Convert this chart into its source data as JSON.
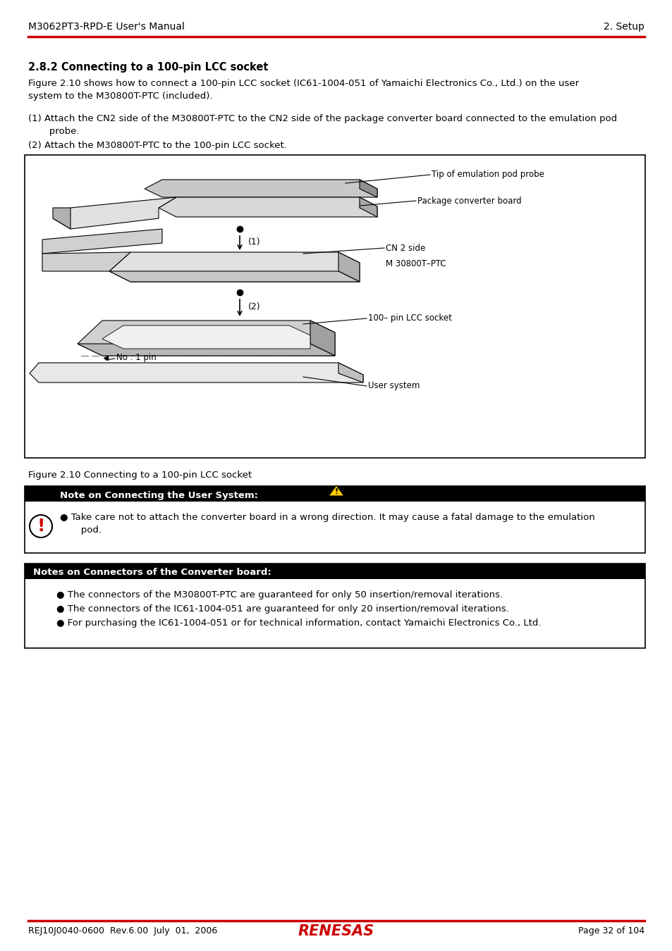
{
  "header_left": "M3062PT3-RPD-E User's Manual",
  "header_right": "2. Setup",
  "footer_left": "REJ10J0040-0600  Rev.6.00  July  01,  2006",
  "footer_right": "Page 32 of 104",
  "footer_logo": "RENESAS",
  "section_title": "2.8.2 Connecting to a 100-pin LCC socket",
  "para1_line1": "Figure 2.10 shows how to connect a 100-pin LCC socket (IC61-1004-051 of Yamaichi Electronics Co., Ltd.) on the user",
  "para1_line2": "system to the M30800T-PTC (included).",
  "step1_line1": "(1) Attach the CN2 side of the M30800T-PTC to the CN2 side of the package converter board connected to the emulation pod",
  "step1_line2": "       probe.",
  "step2": "(2) Attach the M30800T-PTC to the 100-pin LCC socket.",
  "fig_caption": "Figure 2.10 Connecting to a 100-pin LCC socket",
  "label_tip": "Tip of emulation pod probe",
  "label_pcb": "Package converter board",
  "label_cn2": "CN 2 side",
  "label_ptc": "M 30800T–PTC",
  "label_lcc": "100– pin LCC socket",
  "label_pin": "No . 1 pin",
  "label_user": "User system",
  "caution_title": "Note on Connecting the User System:",
  "caution_body1": "● Take care not to attach the converter board in a wrong direction. It may cause a fatal damage to the emulation",
  "caution_body2": "       pod.",
  "important_title": "Notes on Connectors of the Converter board:",
  "important_body1": "● The connectors of the M30800T-PTC are guaranteed for only 50 insertion/removal iterations.",
  "important_body2": "● The connectors of the IC61-1004-051 are guaranteed for only 20 insertion/removal iterations.",
  "important_body3": "● For purchasing the IC61-1004-051 or for technical information, contact Yamaichi Electronics Co., Ltd.",
  "bg_color": "#ffffff",
  "red_color": "#cc0000",
  "black": "#000000",
  "white": "#ffffff",
  "gray1": "#d0d0d0",
  "gray2": "#a0a0a0",
  "gray3": "#b8b8b8"
}
